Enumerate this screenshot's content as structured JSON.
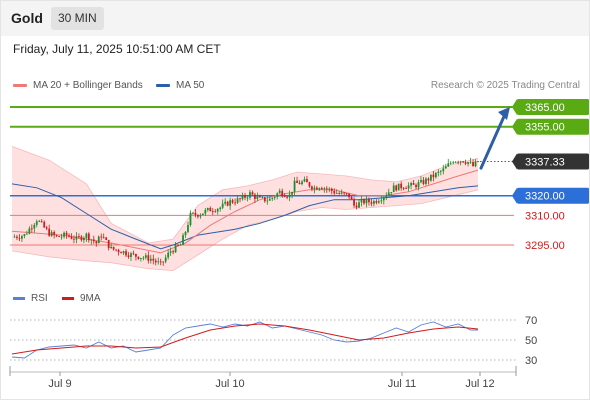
{
  "header": {
    "title": "Gold",
    "timeframe": "30 MIN"
  },
  "datetime": "Friday, July 11, 2025 10:51:00 AM CET",
  "legend": {
    "ma20": "MA 20 + Bollinger Bands",
    "ma50": "MA 50",
    "credit": "Research © 2025 Trading Central"
  },
  "rsi_legend": {
    "rsi": "RSI",
    "ma": "9MA"
  },
  "colors": {
    "bull_candle": "#1a8f2a",
    "bear_candle": "#d01c1c",
    "ma20": "#f07878",
    "bollinger_fill": "#ffdada",
    "ma50": "#2c5fa8",
    "resistance": "#5aaa14",
    "support_blue": "#2c6fd8",
    "support_red": "#ee7474",
    "current_price": "#333333",
    "arrow": "#2c5fa8",
    "rsi_line": "#5a7fd8",
    "rsi_ma": "#d01c1c"
  },
  "chart_data": {
    "type": "candlestick",
    "x_ticks": [
      "Jul 9",
      "Jul 10",
      "Jul 11",
      "Jul 12"
    ],
    "y_range": [
      3278,
      3372
    ],
    "levels": [
      {
        "label": "3365.00",
        "value": 3365,
        "kind": "resistance"
      },
      {
        "label": "3355.00",
        "value": 3355,
        "kind": "resistance"
      },
      {
        "label": "3337.33",
        "value": 3337.33,
        "kind": "current"
      },
      {
        "label": "3320.00",
        "value": 3320,
        "kind": "pivot"
      },
      {
        "label": "3310.00",
        "value": 3310,
        "kind": "support"
      },
      {
        "label": "3295.00",
        "value": 3295,
        "kind": "support"
      }
    ],
    "close_path": [
      [
        0,
        3299
      ],
      [
        5,
        3300
      ],
      [
        10,
        3308
      ],
      [
        15,
        3301
      ],
      [
        18,
        3299
      ],
      [
        22,
        3300
      ],
      [
        26,
        3298
      ],
      [
        30,
        3300
      ],
      [
        34,
        3296
      ],
      [
        36,
        3300
      ],
      [
        40,
        3293
      ],
      [
        44,
        3292
      ],
      [
        48,
        3290
      ],
      [
        52,
        3289
      ],
      [
        56,
        3288
      ],
      [
        60,
        3285
      ],
      [
        64,
        3292
      ],
      [
        68,
        3295
      ],
      [
        70,
        3302
      ],
      [
        72,
        3310
      ],
      [
        76,
        3311
      ],
      [
        80,
        3313
      ],
      [
        84,
        3314
      ],
      [
        88,
        3317
      ],
      [
        92,
        3318
      ],
      [
        96,
        3321
      ],
      [
        100,
        3318
      ],
      [
        104,
        3318
      ],
      [
        108,
        3322
      ],
      [
        112,
        3320
      ],
      [
        114,
        3326
      ],
      [
        118,
        3327
      ],
      [
        122,
        3324
      ],
      [
        124,
        3325
      ],
      [
        126,
        3324
      ],
      [
        130,
        3322
      ],
      [
        132,
        3321
      ],
      [
        136,
        3320
      ],
      [
        138,
        3315
      ],
      [
        142,
        3317
      ],
      [
        146,
        3317
      ],
      [
        150,
        3320
      ],
      [
        154,
        3324
      ],
      [
        158,
        3325
      ],
      [
        162,
        3325
      ],
      [
        166,
        3327
      ],
      [
        170,
        3330
      ],
      [
        174,
        3333
      ],
      [
        178,
        3338
      ],
      [
        182,
        3338
      ],
      [
        184,
        3337
      ],
      [
        186,
        3335
      ],
      [
        188,
        3337.33
      ]
    ],
    "ma20": [
      [
        0,
        3302
      ],
      [
        20,
        3300
      ],
      [
        40,
        3296
      ],
      [
        60,
        3291
      ],
      [
        70,
        3296
      ],
      [
        80,
        3305
      ],
      [
        90,
        3312
      ],
      [
        100,
        3318
      ],
      [
        110,
        3321
      ],
      [
        120,
        3323
      ],
      [
        130,
        3323
      ],
      [
        140,
        3320
      ],
      [
        150,
        3320
      ],
      [
        160,
        3322
      ],
      [
        170,
        3326
      ],
      [
        180,
        3330
      ],
      [
        188,
        3333
      ]
    ],
    "ma50": [
      [
        0,
        3326
      ],
      [
        10,
        3324
      ],
      [
        20,
        3319
      ],
      [
        30,
        3311
      ],
      [
        40,
        3303
      ],
      [
        50,
        3298
      ],
      [
        60,
        3293
      ],
      [
        65,
        3295
      ],
      [
        75,
        3300
      ],
      [
        90,
        3303
      ],
      [
        100,
        3306
      ],
      [
        110,
        3310
      ],
      [
        120,
        3315
      ],
      [
        130,
        3318
      ],
      [
        140,
        3318
      ],
      [
        150,
        3319
      ],
      [
        160,
        3320
      ],
      [
        170,
        3322
      ],
      [
        180,
        3324
      ],
      [
        188,
        3325
      ]
    ],
    "boll_upper": [
      [
        0,
        3345
      ],
      [
        15,
        3338
      ],
      [
        30,
        3326
      ],
      [
        40,
        3306
      ],
      [
        55,
        3296
      ],
      [
        65,
        3298
      ],
      [
        75,
        3315
      ],
      [
        85,
        3323
      ],
      [
        95,
        3325
      ],
      [
        105,
        3328
      ],
      [
        115,
        3332
      ],
      [
        125,
        3331
      ],
      [
        135,
        3330
      ],
      [
        145,
        3328
      ],
      [
        155,
        3327
      ],
      [
        165,
        3330
      ],
      [
        175,
        3335
      ],
      [
        188,
        3339
      ]
    ],
    "boll_lower": [
      [
        0,
        3292
      ],
      [
        15,
        3289
      ],
      [
        30,
        3287
      ],
      [
        40,
        3286
      ],
      [
        55,
        3283
      ],
      [
        65,
        3282
      ],
      [
        75,
        3290
      ],
      [
        85,
        3298
      ],
      [
        95,
        3305
      ],
      [
        105,
        3308
      ],
      [
        115,
        3312
      ],
      [
        125,
        3314
      ],
      [
        135,
        3313
      ],
      [
        145,
        3314
      ],
      [
        155,
        3315
      ],
      [
        165,
        3316
      ],
      [
        175,
        3319
      ],
      [
        188,
        3323
      ]
    ],
    "projection": {
      "from": 3334,
      "to": 3365
    },
    "rsi": {
      "ticks": [
        70,
        50,
        30
      ],
      "range": [
        20,
        80
      ],
      "rsi": [
        [
          0,
          33
        ],
        [
          5,
          32
        ],
        [
          10,
          40
        ],
        [
          15,
          43
        ],
        [
          20,
          44
        ],
        [
          25,
          45
        ],
        [
          30,
          42
        ],
        [
          35,
          48
        ],
        [
          40,
          42
        ],
        [
          45,
          44
        ],
        [
          50,
          38
        ],
        [
          55,
          40
        ],
        [
          60,
          42
        ],
        [
          65,
          55
        ],
        [
          70,
          62
        ],
        [
          75,
          64
        ],
        [
          80,
          66
        ],
        [
          85,
          63
        ],
        [
          90,
          66
        ],
        [
          95,
          64
        ],
        [
          100,
          68
        ],
        [
          105,
          62
        ],
        [
          110,
          64
        ],
        [
          115,
          61
        ],
        [
          120,
          58
        ],
        [
          125,
          55
        ],
        [
          130,
          50
        ],
        [
          135,
          48
        ],
        [
          140,
          49
        ],
        [
          145,
          52
        ],
        [
          150,
          57
        ],
        [
          155,
          62
        ],
        [
          160,
          58
        ],
        [
          165,
          65
        ],
        [
          170,
          68
        ],
        [
          175,
          63
        ],
        [
          180,
          66
        ],
        [
          185,
          60
        ],
        [
          188,
          60
        ]
      ],
      "ma": [
        [
          0,
          36
        ],
        [
          10,
          40
        ],
        [
          20,
          42
        ],
        [
          30,
          44
        ],
        [
          40,
          44
        ],
        [
          50,
          42
        ],
        [
          60,
          43
        ],
        [
          70,
          52
        ],
        [
          80,
          60
        ],
        [
          90,
          64
        ],
        [
          100,
          66
        ],
        [
          110,
          64
        ],
        [
          120,
          60
        ],
        [
          130,
          55
        ],
        [
          140,
          50
        ],
        [
          150,
          52
        ],
        [
          160,
          57
        ],
        [
          170,
          61
        ],
        [
          180,
          63
        ],
        [
          188,
          61
        ]
      ]
    }
  }
}
